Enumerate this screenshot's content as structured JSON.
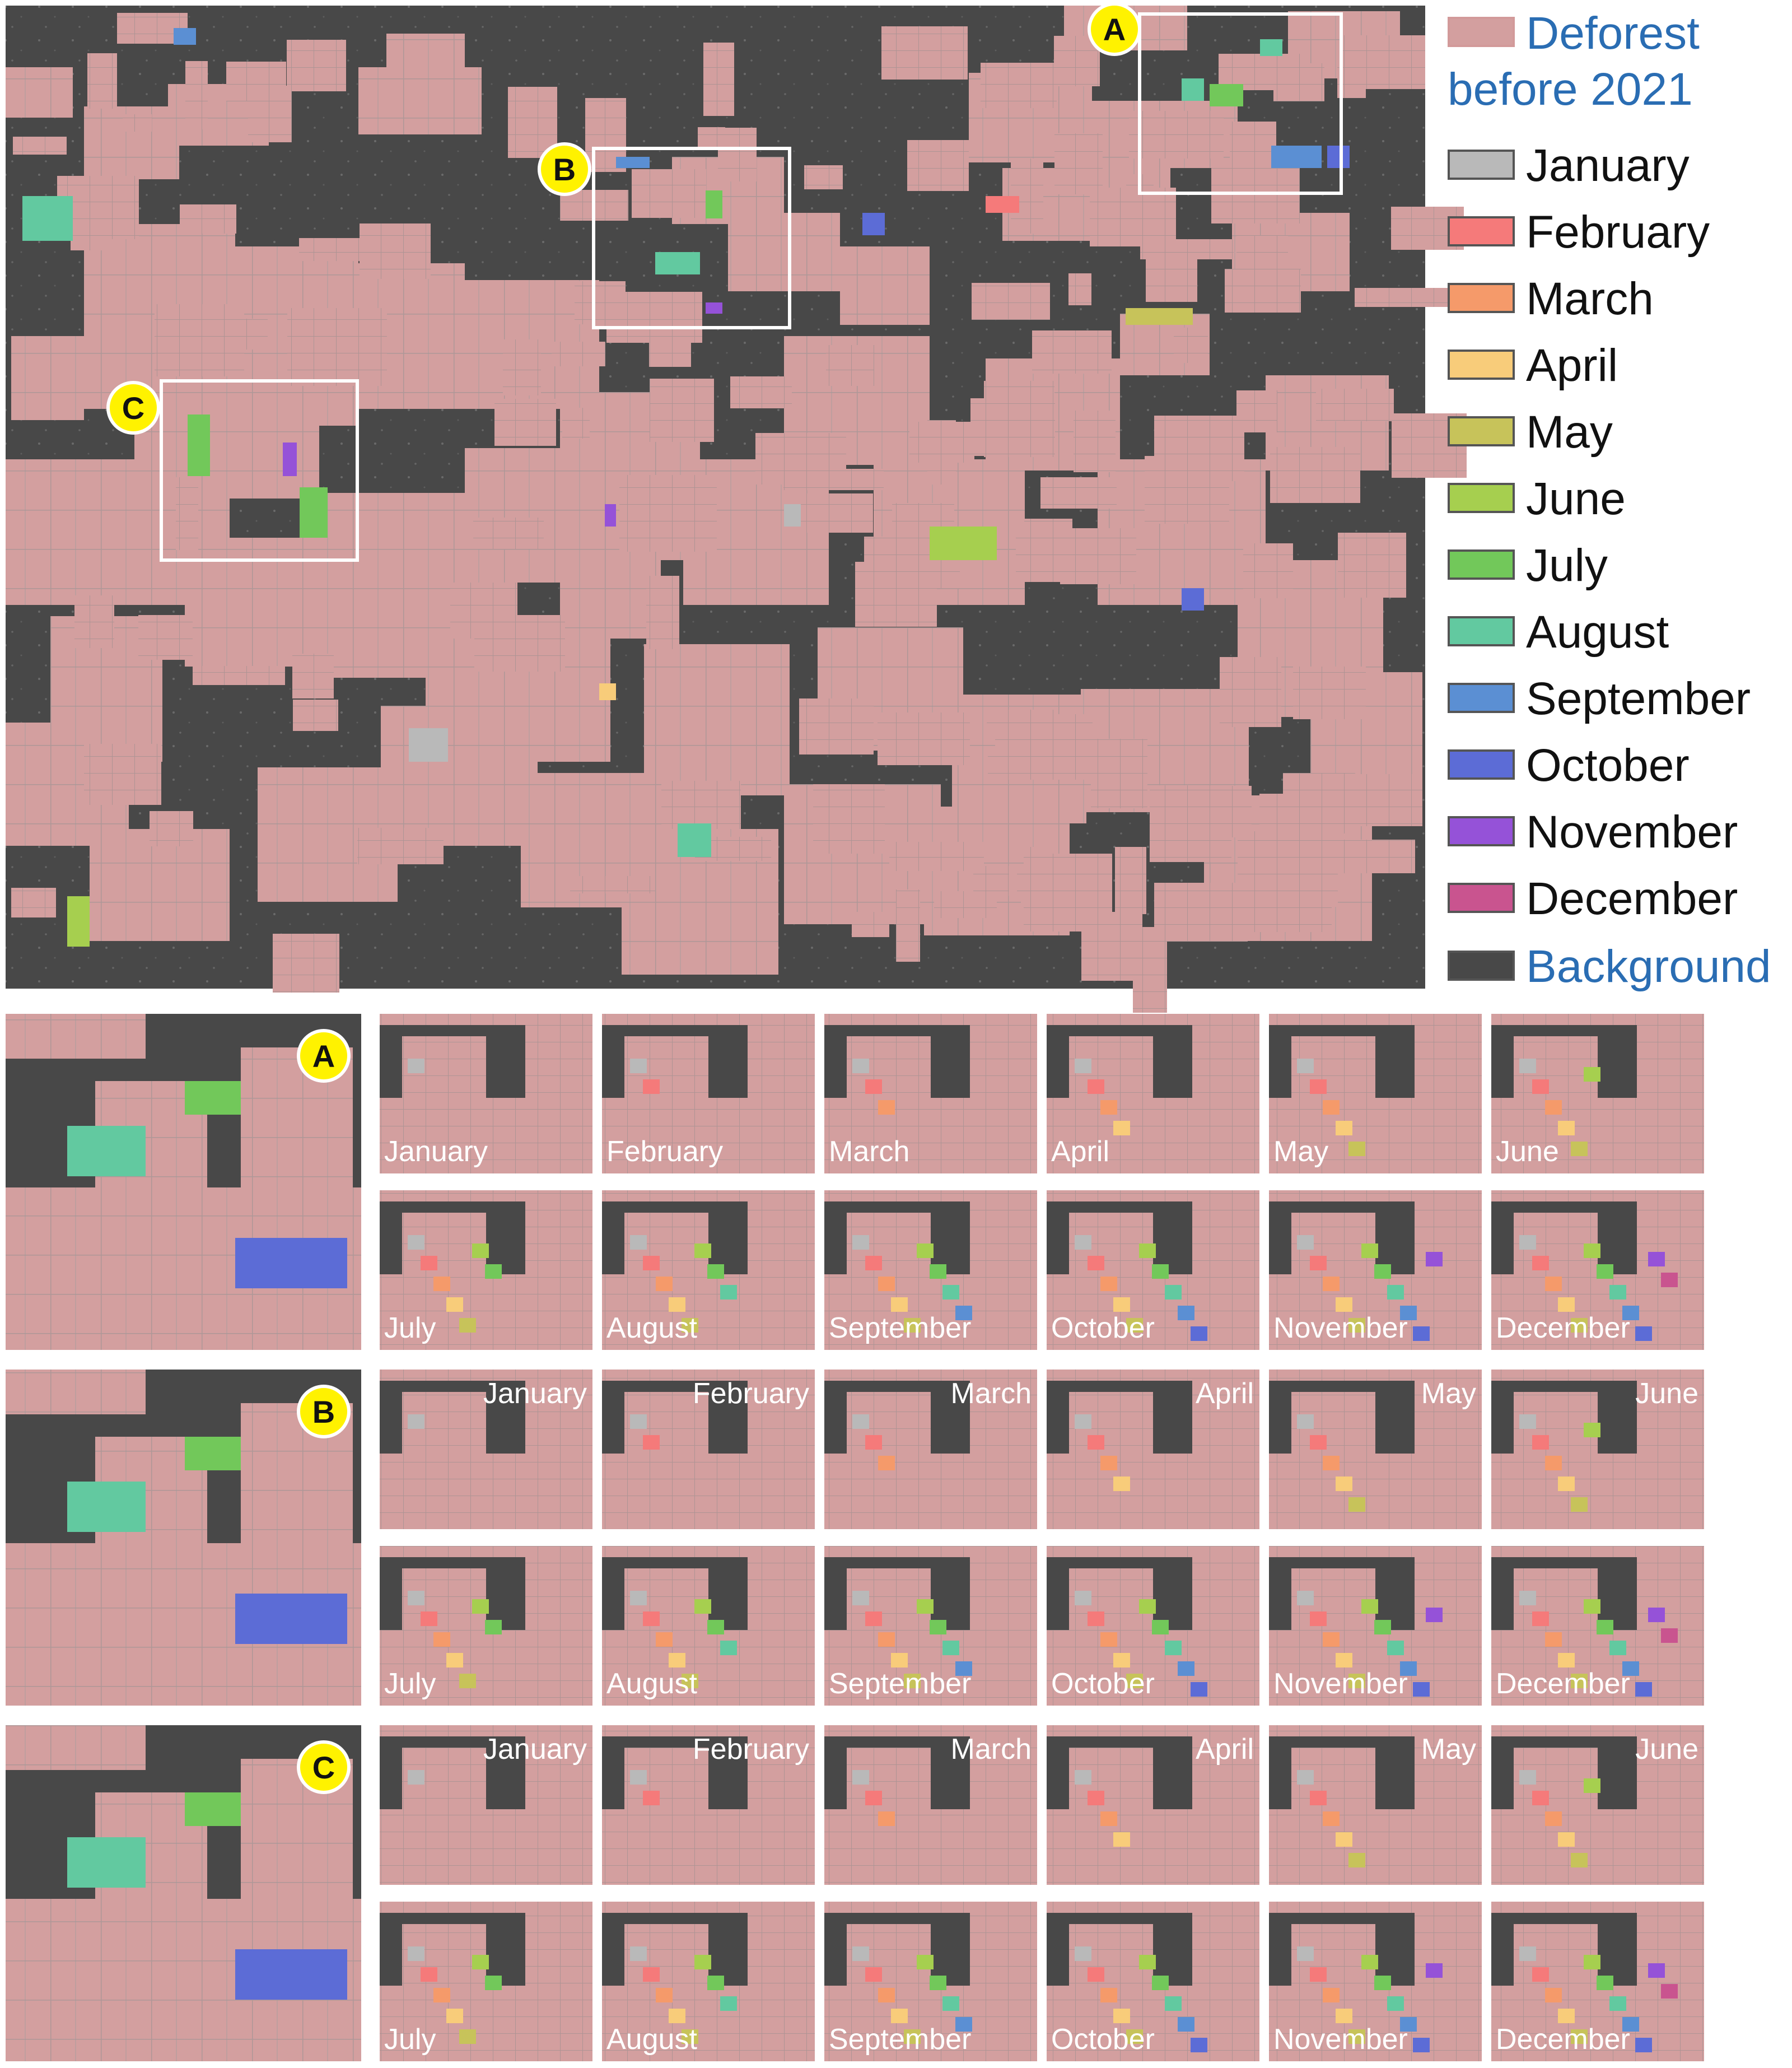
{
  "colors": {
    "deforest_before_2021": "#d39f9f",
    "background": "#484848",
    "months": [
      "#b9b9b9",
      "#f57a7a",
      "#f59a6a",
      "#f8cc7a",
      "#c7c35a",
      "#a6cf4f",
      "#72c85a",
      "#62c9a0",
      "#5b8fd3",
      "#5c6cd6",
      "#9552d8",
      "#c9548f"
    ]
  },
  "legend": {
    "deforest_line1": "Deforest",
    "deforest_line2": "before 2021",
    "months": [
      "January",
      "February",
      "March",
      "April",
      "May",
      "June",
      "July",
      "August",
      "September",
      "October",
      "November",
      "December"
    ],
    "background": "Background"
  },
  "main_map": {
    "boxes": [
      {
        "label": "A",
        "marker_icon": "circle-marker-icon"
      },
      {
        "label": "B",
        "marker_icon": "circle-marker-icon"
      },
      {
        "label": "C",
        "marker_icon": "circle-marker-icon"
      }
    ]
  },
  "details": [
    {
      "label": "A",
      "months": [
        "January",
        "February",
        "March",
        "April",
        "May",
        "June",
        "July",
        "August",
        "September",
        "October",
        "November",
        "December"
      ]
    },
    {
      "label": "B",
      "months": [
        "January",
        "February",
        "March",
        "April",
        "May",
        "June",
        "July",
        "August",
        "September",
        "October",
        "November",
        "December"
      ]
    },
    {
      "label": "C",
      "months": [
        "January",
        "February",
        "March",
        "April",
        "May",
        "June",
        "July",
        "August",
        "September",
        "October",
        "November",
        "December"
      ]
    }
  ]
}
